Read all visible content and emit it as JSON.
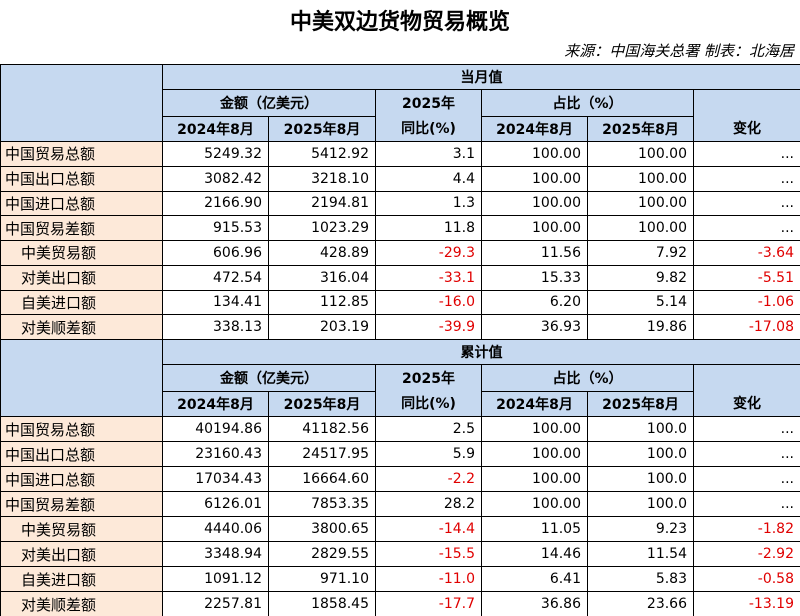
{
  "title": "中美双边货物贸易概览",
  "source": "来源：中国海关总署  制表：北海居",
  "sections": [
    {
      "name": "当月值",
      "header": {
        "amount": "金额（亿美元）",
        "yoy_year": "2025年",
        "yoy": "同比(%)",
        "share": "占比（%）",
        "col1": "2024年8月",
        "col2": "2025年8月",
        "col4": "2024年8月",
        "col5": "2025年8月",
        "change": "变化"
      },
      "rows": [
        [
          "中国贸易总额",
          "5249.32",
          "5412.92",
          "3.1",
          "100.00",
          "100.00",
          "..."
        ],
        [
          "中国出口总额",
          "3082.42",
          "3218.10",
          "4.4",
          "100.00",
          "100.00",
          "..."
        ],
        [
          "中国进口总额",
          "2166.90",
          "2194.81",
          "1.3",
          "100.00",
          "100.00",
          "..."
        ],
        [
          "中国贸易差额",
          "915.53",
          "1023.29",
          "11.8",
          "100.00",
          "100.00",
          "..."
        ],
        [
          "中美贸易额",
          "606.96",
          "428.89",
          "-29.3",
          "11.56",
          "7.92",
          "-3.64"
        ],
        [
          "对美出口额",
          "472.54",
          "316.04",
          "-33.1",
          "15.33",
          "9.82",
          "-5.51"
        ],
        [
          "自美进口额",
          "134.41",
          "112.85",
          "-16.0",
          "6.20",
          "5.14",
          "-1.06"
        ],
        [
          "对美顺差额",
          "338.13",
          "203.19",
          "-39.9",
          "36.93",
          "19.86",
          "-17.08"
        ]
      ]
    },
    {
      "name": "累计值",
      "header": {
        "amount": "金额（亿美元）",
        "yoy_year": "2025年",
        "yoy": "同比(%)",
        "share": "占比（%）",
        "col1": "2024年8月",
        "col2": "2025年8月",
        "col4": "2024年8月",
        "col5": "2025年8月",
        "change": "变化"
      },
      "rows": [
        [
          "中国贸易总额",
          "40194.86",
          "41182.56",
          "2.5",
          "100.00",
          "100.0",
          "..."
        ],
        [
          "中国出口总额",
          "23160.43",
          "24517.95",
          "5.9",
          "100.00",
          "100.0",
          "..."
        ],
        [
          "中国进口总额",
          "17034.43",
          "16664.60",
          "-2.2",
          "100.00",
          "100.0",
          "..."
        ],
        [
          "中国贸易差额",
          "6126.01",
          "7853.35",
          "28.2",
          "100.00",
          "100.0",
          "..."
        ],
        [
          "中美贸易额",
          "4440.06",
          "3800.65",
          "-14.4",
          "11.05",
          "9.23",
          "-1.82"
        ],
        [
          "对美出口额",
          "3348.94",
          "2829.55",
          "-15.5",
          "14.46",
          "11.54",
          "-2.92"
        ],
        [
          "自美进口额",
          "1091.12",
          "971.10",
          "-11.0",
          "6.41",
          "5.83",
          "-0.58"
        ],
        [
          "对美顺差额",
          "2257.81",
          "1858.45",
          "-17.7",
          "36.86",
          "23.66",
          "-13.19"
        ]
      ]
    }
  ]
}
